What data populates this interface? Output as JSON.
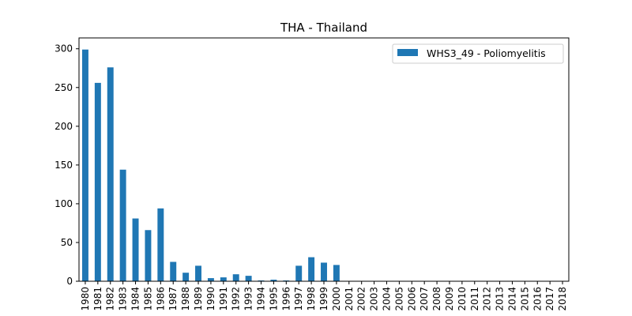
{
  "chart_data": {
    "type": "bar",
    "title": "THA - Thailand",
    "xlabel": "",
    "ylabel": "",
    "categories": [
      "1980",
      "1981",
      "1982",
      "1983",
      "1984",
      "1985",
      "1986",
      "1987",
      "1988",
      "1989",
      "1990",
      "1991",
      "1992",
      "1993",
      "1994",
      "1995",
      "1996",
      "1997",
      "1998",
      "1999",
      "2000",
      "2001",
      "2002",
      "2003",
      "2004",
      "2005",
      "2006",
      "2007",
      "2008",
      "2009",
      "2010",
      "2011",
      "2012",
      "2013",
      "2014",
      "2015",
      "2016",
      "2017",
      "2018"
    ],
    "series": [
      {
        "name": "WHS3_49 - Poliomyelitis",
        "color": "#1f77b4",
        "values": [
          299,
          256,
          276,
          144,
          81,
          66,
          94,
          25,
          11,
          20,
          4,
          5,
          9,
          7,
          1,
          2,
          1,
          20,
          31,
          24,
          21,
          0,
          0,
          0,
          0,
          0,
          0,
          0,
          0,
          0,
          0,
          0,
          0,
          0,
          0,
          0,
          0,
          0,
          0
        ]
      }
    ],
    "ylim": [
      0,
      314
    ],
    "yticks": [
      0,
      50,
      100,
      150,
      200,
      250,
      300
    ],
    "grid": false,
    "legend_position": "top-right"
  }
}
